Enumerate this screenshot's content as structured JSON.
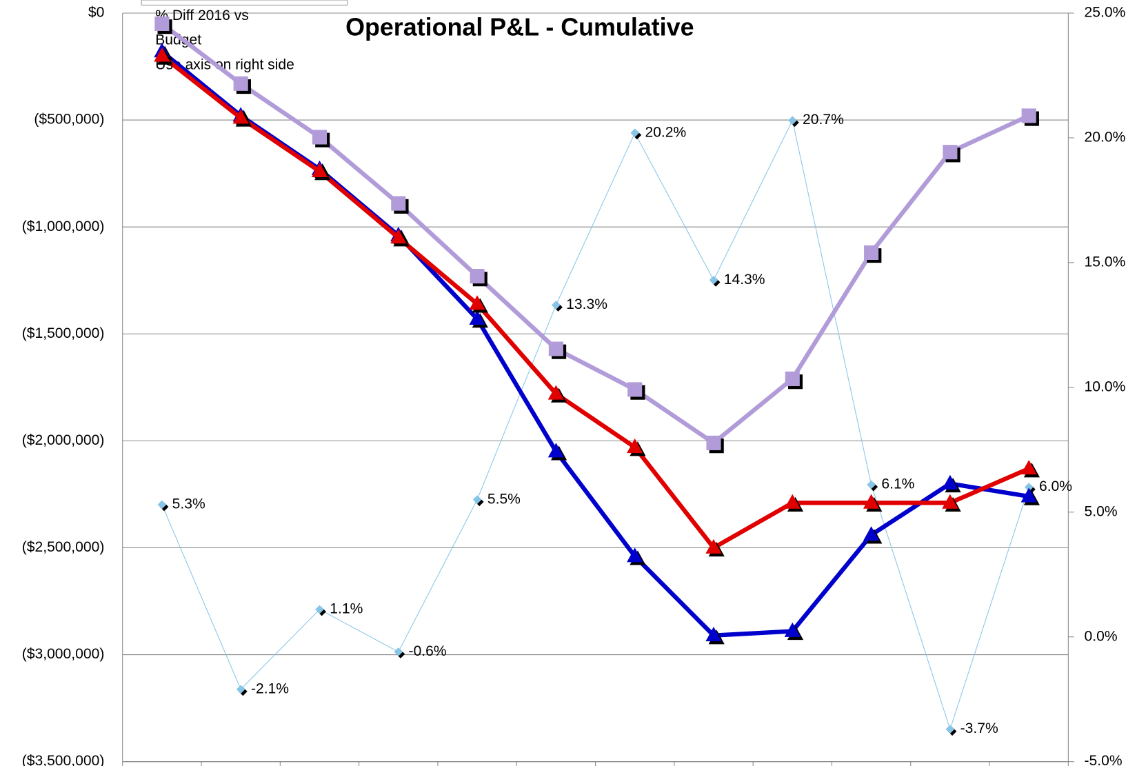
{
  "chart_data": {
    "type": "line",
    "title": "Operational P&L - Cumulative",
    "legend": {
      "lines": [
        "% Diff 2016 vs",
        "Budget",
        "Use axis on right side"
      ]
    },
    "categories": [
      null,
      null,
      null,
      null,
      null,
      null,
      null,
      null,
      null,
      null,
      null,
      null
    ],
    "ylim": [
      -3500000,
      0
    ],
    "yticks": [
      {
        "value": 0,
        "label": "$0"
      },
      {
        "value": -500000,
        "label": "($500,000)"
      },
      {
        "value": -1000000,
        "label": "($1,000,000)"
      },
      {
        "value": -1500000,
        "label": "($1,500,000)"
      },
      {
        "value": -2000000,
        "label": "($2,000,000)"
      },
      {
        "value": -2500000,
        "label": "($2,500,000)"
      },
      {
        "value": -3000000,
        "label": "($3,000,000)"
      },
      {
        "value": -3500000,
        "label": "($3,500,000)"
      }
    ],
    "negative_tick_label_color": "#ff0000",
    "y2lim": [
      -5,
      25
    ],
    "y2ticks": [
      {
        "value": 25,
        "label": "25.0%"
      },
      {
        "value": 20,
        "label": "20.0%"
      },
      {
        "value": 15,
        "label": "15.0%"
      },
      {
        "value": 10,
        "label": "10.0%"
      },
      {
        "value": 5,
        "label": "5.0%"
      },
      {
        "value": 0,
        "label": "0.0%"
      },
      {
        "value": -5,
        "label": "-5.0%"
      }
    ],
    "grid": true,
    "series": [
      {
        "color": "#b19cd9",
        "marker": "square",
        "values": [
          -50000,
          -330000,
          -580000,
          -890000,
          -1230000,
          -1570000,
          -1760000,
          -2010000,
          -1710000,
          -1120000,
          -650000,
          -480000
        ]
      },
      {
        "color": "#e00000",
        "marker": "triangle",
        "values": [
          -200000,
          -490000,
          -740000,
          -1050000,
          -1360000,
          -1780000,
          -2030000,
          -2500000,
          -2290000,
          -2290000,
          -2290000,
          -2130000
        ]
      },
      {
        "color": "#0000cc",
        "marker": "triangle",
        "values": [
          -180000,
          -480000,
          -730000,
          -1040000,
          -1430000,
          -2050000,
          -2540000,
          -2910000,
          -2890000,
          -2440000,
          -2200000,
          -2260000
        ]
      },
      {
        "color": "#87c5e8",
        "marker": "diamond",
        "axis": "y2",
        "values": [
          5.3,
          -2.1,
          1.1,
          -0.6,
          5.5,
          13.3,
          20.2,
          14.3,
          20.7,
          6.1,
          -3.7,
          6.0
        ],
        "value_labels": [
          "5.3%",
          "-2.1%",
          "1.1%",
          "-0.6%",
          "5.5%",
          "13.3%",
          "20.2%",
          "14.3%",
          "20.7%",
          "6.1%",
          "-3.7%",
          "6.0%"
        ]
      }
    ]
  }
}
